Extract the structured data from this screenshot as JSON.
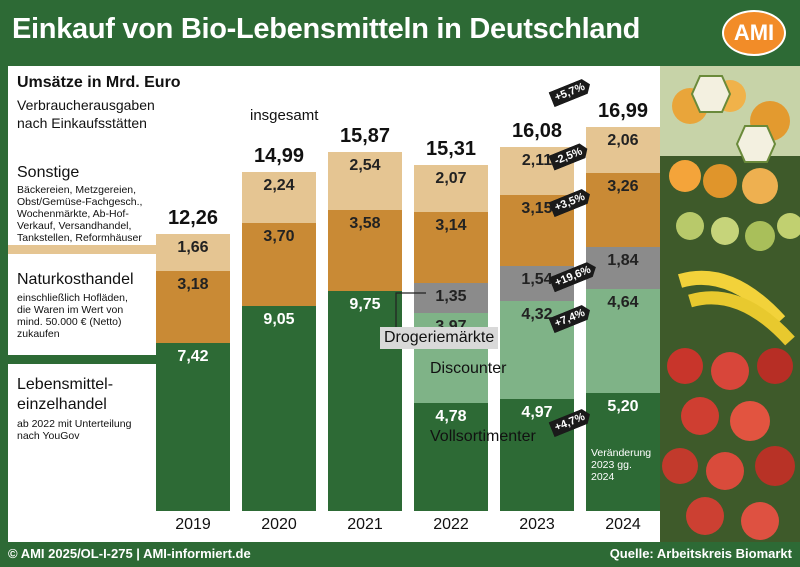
{
  "title": "Einkauf von Bio-Lebensmitteln in Deutschland",
  "logo": "AMI",
  "footer": {
    "left": "© AMI 2025/OL-I-275 | AMI-informiert.de",
    "right": "Quelle: Arbeitskreis Biomarkt"
  },
  "legend": {
    "title": "Umsätze in Mrd. Euro",
    "subtitle_1": "Verbraucherausgaben",
    "subtitle_2": "nach Einkaufsstätten",
    "sonstige": "Sonstige",
    "sonstige_desc_1": "Bäckereien, Metzgereien,",
    "sonstige_desc_2": "Obst/Gemüse-Fachgesch.,",
    "sonstige_desc_3": "Wochenmärkte, Ab-Hof-",
    "sonstige_desc_4": "Verkauf, Versandhandel,",
    "sonstige_desc_5": "Tankstellen, Reformhäuser",
    "naturkost": "Naturkosthandel",
    "naturkost_desc_1": "einschließlich Hofläden,",
    "naturkost_desc_2": "die Waren im Wert von",
    "naturkost_desc_3": "mind. 50.000 € (Netto)",
    "naturkost_desc_4": "zukaufen",
    "leh_1": "Lebensmittel-",
    "leh_2": "einzelhandel",
    "leh_desc_1": "ab 2022 mit Unterteilung",
    "leh_desc_2": "nach YouGov",
    "insgesamt": "insgesamt",
    "drogerie": "Drogeriemärkte",
    "discounter": "Discounter",
    "vollsortimenter": "Vollsortimenter",
    "note_1": "Veränderung",
    "note_2": "2023 gg.",
    "note_3": "2024"
  },
  "colors": {
    "sonstige": "#e5c592",
    "naturkost": "#c98a35",
    "drogerie": "#8b8b8b",
    "discounter": "#7fb387",
    "vollsortimenter": "#2d6a35"
  },
  "chart_data": {
    "type": "bar",
    "stacked": true,
    "title": "Einkauf von Bio-Lebensmitteln in Deutschland",
    "ylabel": "Umsätze in Mrd. Euro",
    "categories": [
      "2019",
      "2020",
      "2021",
      "2022",
      "2023",
      "2024"
    ],
    "series": [
      {
        "name": "Lebensmitteleinzelhandel / Vollsortimenter",
        "key": "vollsortimenter",
        "values": [
          7.42,
          9.05,
          9.75,
          4.78,
          4.97,
          5.2
        ],
        "labels": [
          "7,42",
          "9,05",
          "9,75",
          "4,78",
          "4,97",
          "5,20"
        ],
        "label_class": [
          "light",
          "light",
          "light",
          "light",
          "light",
          "light"
        ]
      },
      {
        "name": "Discounter",
        "key": "discounter",
        "values": [
          null,
          null,
          null,
          3.97,
          4.32,
          4.64
        ],
        "labels": [
          "",
          "",
          "",
          "3,97",
          "4,32",
          "4,64"
        ],
        "label_class": [
          "dark",
          "dark",
          "dark",
          "dark",
          "dark",
          "dark"
        ]
      },
      {
        "name": "Drogeriemärkte",
        "key": "drogerie",
        "values": [
          null,
          null,
          null,
          1.35,
          1.54,
          1.84
        ],
        "labels": [
          "",
          "",
          "",
          "1,35",
          "1,54",
          "1,84"
        ],
        "label_class": [
          "dark",
          "dark",
          "dark",
          "dark",
          "dark",
          "dark"
        ]
      },
      {
        "name": "Naturkosthandel",
        "key": "naturkost",
        "values": [
          3.18,
          3.7,
          3.58,
          3.14,
          3.15,
          3.26
        ],
        "labels": [
          "3,18",
          "3,70",
          "3,58",
          "3,14",
          "3,15",
          "3,26"
        ],
        "label_class": [
          "dark",
          "dark",
          "dark",
          "dark",
          "dark",
          "dark"
        ]
      },
      {
        "name": "Sonstige",
        "key": "sonstige",
        "values": [
          1.66,
          2.24,
          2.54,
          2.07,
          2.11,
          2.06
        ],
        "labels": [
          "1,66",
          "2,24",
          "2,54",
          "2,07",
          "2,11",
          "2,06"
        ],
        "label_class": [
          "dark",
          "dark",
          "dark",
          "dark",
          "dark",
          "dark"
        ]
      }
    ],
    "totals": [
      12.26,
      14.99,
      15.87,
      15.31,
      16.08,
      16.99
    ],
    "total_labels": [
      "12,26",
      "14,99",
      "15,87",
      "15,31",
      "16,08",
      "16,99"
    ],
    "changes_2023_2024": [
      {
        "label": "+5,7%",
        "segment": "total"
      },
      {
        "label": "-2,5%",
        "segment": "sonstige"
      },
      {
        "label": "+3,5%",
        "segment": "naturkost"
      },
      {
        "label": "+19,6%",
        "segment": "drogerie"
      },
      {
        "label": "+7,4%",
        "segment": "discounter"
      },
      {
        "label": "+4,7%",
        "segment": "vollsortimenter"
      }
    ],
    "ylim": [
      0,
      19.5
    ]
  }
}
